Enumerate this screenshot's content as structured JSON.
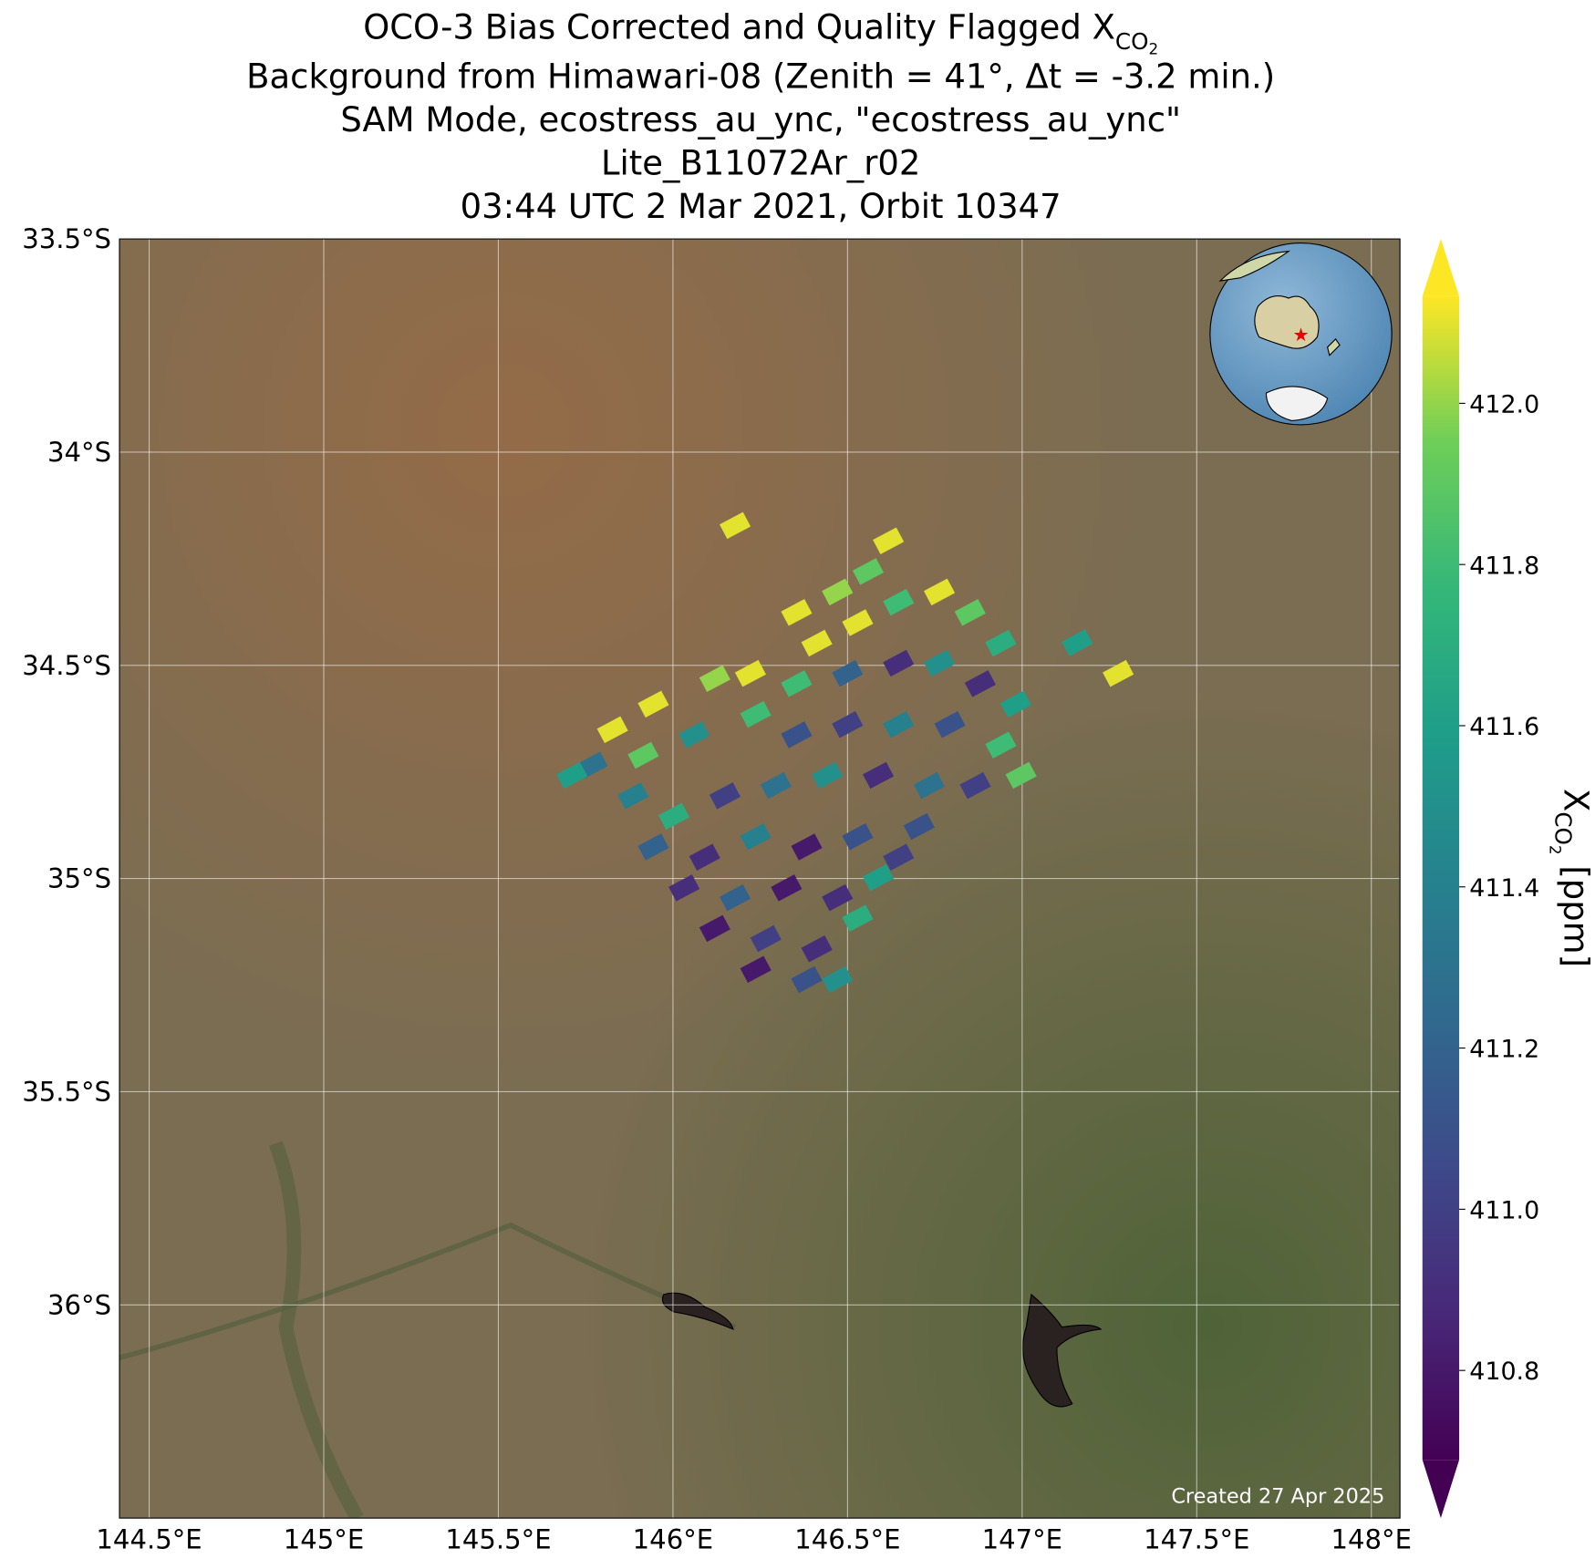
{
  "chart_data": {
    "type": "map",
    "title": [
      "OCO-3 Bias Corrected and Quality Flagged X",
      "CO",
      "2"
    ],
    "subtitles": [
      "Background from Himawari-08 (Zenith = 41°, Δt = -3.2 min.)",
      "SAM Mode, ecostress_au_ync, \"ecostress_au_ync\"",
      "Lite_B11072Ar_r02",
      "03:44 UTC 2 Mar 2021, Orbit 10347"
    ],
    "annotation": "Created 27 Apr 2025",
    "colormap": "viridis",
    "grid": true,
    "xlim": [
      144.415,
      148.082
    ],
    "ylim": [
      -36.5,
      -33.5
    ],
    "xticks": [
      {
        "value": 144.5,
        "label": "144.5°E"
      },
      {
        "value": 145,
        "label": "145°E"
      },
      {
        "value": 145.5,
        "label": "145.5°E"
      },
      {
        "value": 146,
        "label": "146°E"
      },
      {
        "value": 146.5,
        "label": "146.5°E"
      },
      {
        "value": 147,
        "label": "147°E"
      },
      {
        "value": 147.5,
        "label": "147.5°E"
      },
      {
        "value": 148,
        "label": "148°E"
      }
    ],
    "yticks": [
      {
        "value": -33.5,
        "label": "33.5°S"
      },
      {
        "value": -34,
        "label": "34°S"
      },
      {
        "value": -34.5,
        "label": "34.5°S"
      },
      {
        "value": -35,
        "label": "35°S"
      },
      {
        "value": -35.5,
        "label": "35.5°S"
      },
      {
        "value": -36,
        "label": "36°S"
      }
    ],
    "clim": [
      410.689,
      412.133
    ],
    "cticks": [
      410.8,
      {
        "value": 411,
        "label": "411.0"
      },
      411.2,
      411.4,
      411.6,
      411.8,
      {
        "value": 412,
        "label": "412.0"
      }
    ],
    "colorbar_label": [
      "X",
      "CO",
      "2",
      " [ppm]"
    ],
    "lon": [
      145.827,
      145.944,
      146.12,
      146.222,
      145.769,
      145.915,
      146.061,
      146.237,
      146.354,
      145.711,
      145.886,
      146.003,
      146.149,
      146.295,
      146.442,
      145.944,
      146.091,
      146.237,
      146.383,
      146.529,
      146.646,
      146.032,
      146.178,
      146.325,
      146.471,
      146.588,
      146.12,
      146.266,
      146.412,
      146.529,
      146.237,
      146.383,
      146.471,
      146.354,
      146.471,
      146.559,
      146.617,
      146.412,
      146.529,
      146.646,
      146.763,
      146.851,
      146.939,
      146.354,
      146.5,
      146.646,
      146.763,
      146.88,
      146.982,
      146.5,
      146.646,
      146.793,
      146.939,
      146.588,
      146.734,
      146.866,
      146.997,
      146.705,
      147.158,
      147.275,
      146.178
    ],
    "lat": [
      -34.651,
      -34.591,
      -34.531,
      -34.519,
      -34.734,
      -34.711,
      -34.663,
      -34.615,
      -34.663,
      -34.758,
      -34.806,
      -34.854,
      -34.806,
      -34.782,
      -34.758,
      -34.926,
      -34.95,
      -34.902,
      -34.926,
      -34.902,
      -34.95,
      -35.022,
      -35.045,
      -35.022,
      -35.045,
      -34.998,
      -35.117,
      -35.141,
      -35.165,
      -35.093,
      -35.213,
      -35.237,
      -35.237,
      -34.376,
      -34.328,
      -34.28,
      -34.208,
      -34.448,
      -34.4,
      -34.352,
      -34.328,
      -34.376,
      -34.448,
      -34.543,
      -34.519,
      -34.495,
      -34.495,
      -34.543,
      -34.591,
      -34.639,
      -34.639,
      -34.639,
      -34.687,
      -34.758,
      -34.782,
      -34.782,
      -34.758,
      -34.878,
      -34.447,
      -34.519,
      -34.172
    ],
    "values": [
      412.1,
      412.1,
      412.0,
      412.1,
      411.3,
      411.9,
      411.5,
      411.8,
      411.1,
      411.6,
      411.4,
      411.7,
      411.0,
      411.3,
      411.5,
      411.2,
      410.9,
      411.4,
      410.8,
      411.1,
      411.0,
      410.9,
      411.2,
      410.8,
      410.9,
      411.6,
      410.8,
      411.0,
      410.9,
      411.7,
      410.8,
      411.1,
      411.5,
      412.1,
      412.0,
      411.9,
      412.1,
      412.1,
      412.1,
      411.8,
      412.1,
      411.9,
      411.7,
      411.8,
      411.2,
      410.9,
      411.5,
      410.9,
      411.6,
      411.0,
      411.4,
      411.1,
      411.8,
      410.9,
      411.3,
      411.0,
      411.9,
      411.1,
      411.6,
      412.1,
      412.1
    ]
  }
}
